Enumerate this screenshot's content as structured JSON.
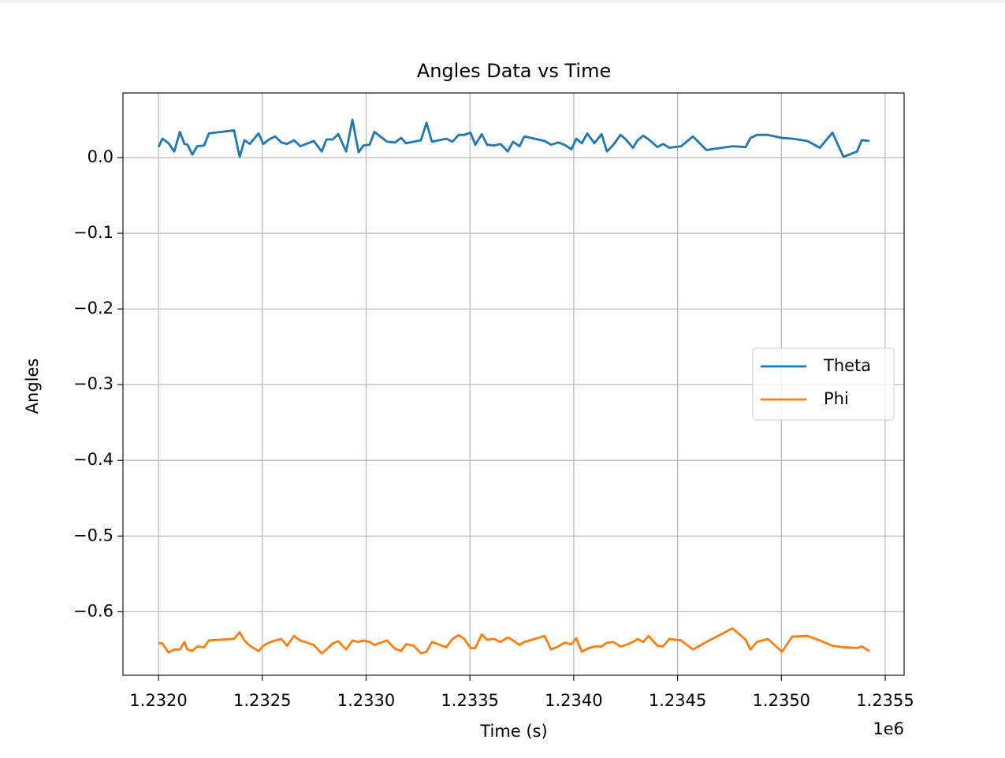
{
  "chart_data": {
    "type": "line",
    "title": "Angles Data vs Time",
    "x_label": "Time (s)",
    "y_label": "Angles",
    "x_offset_label": "1e6",
    "x": [
      1232000,
      1232019,
      1232049,
      1232076,
      1232103,
      1232125,
      1232140,
      1232163,
      1232186,
      1232220,
      1232243,
      1232364,
      1232391,
      1232414,
      1232440,
      1232482,
      1232505,
      1232532,
      1232562,
      1232592,
      1232619,
      1232653,
      1232683,
      1232748,
      1232786,
      1232809,
      1232839,
      1232866,
      1232904,
      1232934,
      1232964,
      1232987,
      1233017,
      1233040,
      1233101,
      1233139,
      1233169,
      1233192,
      1233230,
      1233264,
      1233291,
      1233317,
      1233386,
      1233416,
      1233446,
      1233473,
      1233503,
      1233526,
      1233557,
      1233583,
      1233617,
      1233648,
      1233682,
      1233708,
      1233739,
      1233762,
      1233860,
      1233891,
      1233925,
      1233955,
      1233989,
      1234012,
      1234039,
      1234065,
      1234099,
      1234134,
      1234160,
      1234191,
      1234225,
      1234251,
      1234285,
      1234308,
      1234335,
      1234361,
      1234403,
      1234430,
      1234460,
      1234517,
      1234574,
      1234639,
      1234764,
      1234828,
      1234851,
      1234882,
      1234935,
      1235003,
      1235052,
      1235125,
      1235185,
      1235246,
      1235299,
      1235364,
      1235387,
      1235424
    ],
    "series": [
      {
        "name": "Theta",
        "color": "#1f77b4",
        "values": [
          0.014,
          0.025,
          0.019,
          0.008,
          0.034,
          0.018,
          0.017,
          0.004,
          0.015,
          0.016,
          0.032,
          0.036,
          0.001,
          0.023,
          0.018,
          0.032,
          0.018,
          0.024,
          0.028,
          0.02,
          0.018,
          0.023,
          0.015,
          0.022,
          0.008,
          0.024,
          0.024,
          0.031,
          0.008,
          0.05,
          0.007,
          0.016,
          0.017,
          0.034,
          0.021,
          0.02,
          0.026,
          0.019,
          0.021,
          0.023,
          0.046,
          0.021,
          0.025,
          0.021,
          0.03,
          0.03,
          0.033,
          0.017,
          0.031,
          0.017,
          0.016,
          0.018,
          0.008,
          0.021,
          0.015,
          0.028,
          0.022,
          0.017,
          0.02,
          0.017,
          0.011,
          0.025,
          0.019,
          0.032,
          0.019,
          0.031,
          0.008,
          0.017,
          0.03,
          0.024,
          0.013,
          0.023,
          0.029,
          0.024,
          0.014,
          0.018,
          0.013,
          0.015,
          0.028,
          0.01,
          0.015,
          0.014,
          0.026,
          0.03,
          0.03,
          0.026,
          0.025,
          0.022,
          0.013,
          0.033,
          0.001,
          0.008,
          0.023,
          0.022
        ]
      },
      {
        "name": "Phi",
        "color": "#ff7f0e",
        "values": [
          -0.641,
          -0.642,
          -0.654,
          -0.65,
          -0.65,
          -0.64,
          -0.65,
          -0.652,
          -0.646,
          -0.647,
          -0.638,
          -0.636,
          -0.627,
          -0.638,
          -0.645,
          -0.652,
          -0.645,
          -0.641,
          -0.638,
          -0.636,
          -0.645,
          -0.632,
          -0.638,
          -0.644,
          -0.655,
          -0.65,
          -0.642,
          -0.639,
          -0.65,
          -0.638,
          -0.64,
          -0.638,
          -0.64,
          -0.644,
          -0.638,
          -0.649,
          -0.652,
          -0.643,
          -0.645,
          -0.655,
          -0.653,
          -0.64,
          -0.647,
          -0.636,
          -0.631,
          -0.636,
          -0.648,
          -0.648,
          -0.63,
          -0.637,
          -0.636,
          -0.64,
          -0.634,
          -0.638,
          -0.644,
          -0.64,
          -0.632,
          -0.65,
          -0.646,
          -0.641,
          -0.643,
          -0.635,
          -0.653,
          -0.649,
          -0.646,
          -0.646,
          -0.641,
          -0.64,
          -0.646,
          -0.644,
          -0.64,
          -0.636,
          -0.64,
          -0.632,
          -0.645,
          -0.646,
          -0.636,
          -0.638,
          -0.65,
          -0.64,
          -0.622,
          -0.637,
          -0.65,
          -0.64,
          -0.636,
          -0.653,
          -0.633,
          -0.632,
          -0.638,
          -0.645,
          -0.647,
          -0.648,
          -0.646,
          -0.652
        ]
      }
    ],
    "xlim": [
      1231829,
      1235591
    ],
    "xticks": [
      {
        "value": 1232000,
        "label": "1.2320"
      },
      {
        "value": 1232500,
        "label": "1.2325"
      },
      {
        "value": 1233000,
        "label": "1.2330"
      },
      {
        "value": 1233500,
        "label": "1.2335"
      },
      {
        "value": 1234000,
        "label": "1.2340"
      },
      {
        "value": 1234500,
        "label": "1.2345"
      },
      {
        "value": 1235000,
        "label": "1.2350"
      },
      {
        "value": 1235500,
        "label": "1.2355"
      }
    ],
    "ylim": [
      -0.684,
      0.0854
    ],
    "yticks": [
      {
        "value": 0,
        "label": "0.0"
      },
      {
        "value": -0.1,
        "label": "−0.1"
      },
      {
        "value": -0.2,
        "label": "−0.2"
      },
      {
        "value": -0.3,
        "label": "−0.3"
      },
      {
        "value": -0.4,
        "label": "−0.4"
      },
      {
        "value": -0.5,
        "label": "−0.5"
      },
      {
        "value": -0.6,
        "label": "−0.6"
      }
    ],
    "grid": true,
    "legend": "center right"
  }
}
